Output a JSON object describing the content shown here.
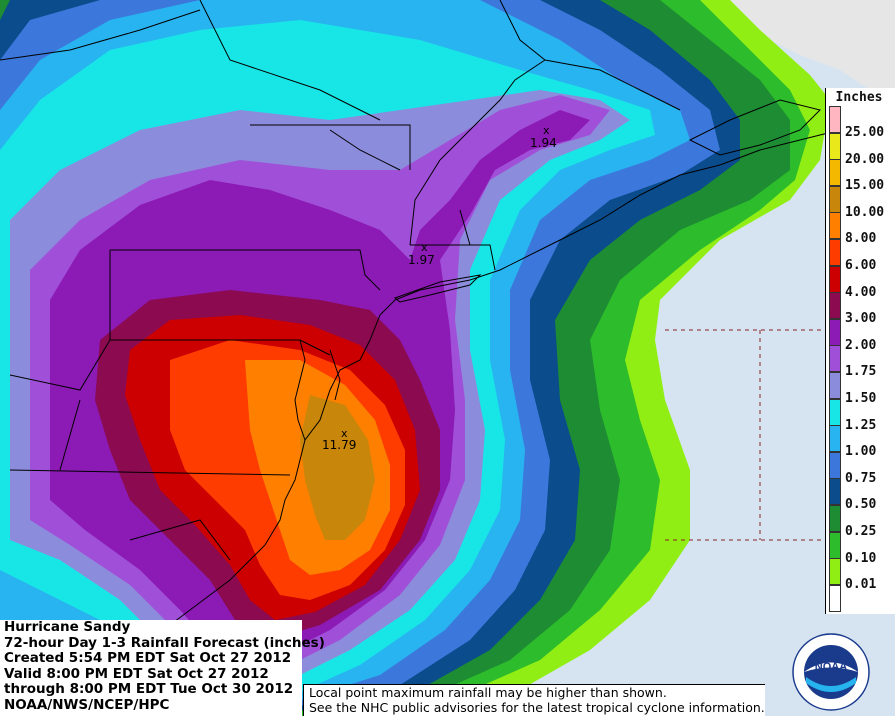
{
  "info": {
    "line1": "Hurricane Sandy",
    "line2": "72-hour Day 1-3 Rainfall Forecast (inches)",
    "line3": "Created 5:54 PM EDT Sat Oct 27 2012",
    "line4": "Valid 8:00 PM EDT Sat Oct 27 2012",
    "line5": "through 8:00 PM EDT Tue Oct 30 2012",
    "line6": "NOAA/NWS/NCEP/HPC"
  },
  "notes": {
    "line1": "Local point maximum rainfall may be higher than shown.",
    "line2": "See the NHC public advisories for the latest tropical cyclone information."
  },
  "legend": {
    "title": "Inches",
    "items": [
      {
        "label": "25.00",
        "color": "#ffb6c1"
      },
      {
        "label": "20.00",
        "color": "#e8e81a"
      },
      {
        "label": "15.00",
        "color": "#f5b800"
      },
      {
        "label": "10.00",
        "color": "#c8860a"
      },
      {
        "label": "8.00",
        "color": "#ff7f00"
      },
      {
        "label": "6.00",
        "color": "#ff3c00"
      },
      {
        "label": "4.00",
        "color": "#cc0000"
      },
      {
        "label": "3.00",
        "color": "#8b0a50"
      },
      {
        "label": "2.00",
        "color": "#8c1ab4"
      },
      {
        "label": "1.75",
        "color": "#a050d8"
      },
      {
        "label": "1.50",
        "color": "#8c8cdc"
      },
      {
        "label": "1.25",
        "color": "#18e6e6"
      },
      {
        "label": "1.00",
        "color": "#28b4f0"
      },
      {
        "label": "0.75",
        "color": "#3c78dc"
      },
      {
        "label": "0.50",
        "color": "#0a4c8c"
      },
      {
        "label": "0.25",
        "color": "#1e8c32"
      },
      {
        "label": "0.10",
        "color": "#2cbc2c"
      },
      {
        "label": "0.01",
        "color": "#90ee14"
      },
      {
        "label": "",
        "color": "#ffffff"
      }
    ]
  },
  "maxima": [
    {
      "value": "1.94"
    },
    {
      "value": "1.97"
    },
    {
      "value": "11.79"
    }
  ],
  "logo": {
    "text": "NOAA"
  },
  "colors": {
    "ocean": "#d6e4f2",
    "outside": "#e6e6e6"
  }
}
